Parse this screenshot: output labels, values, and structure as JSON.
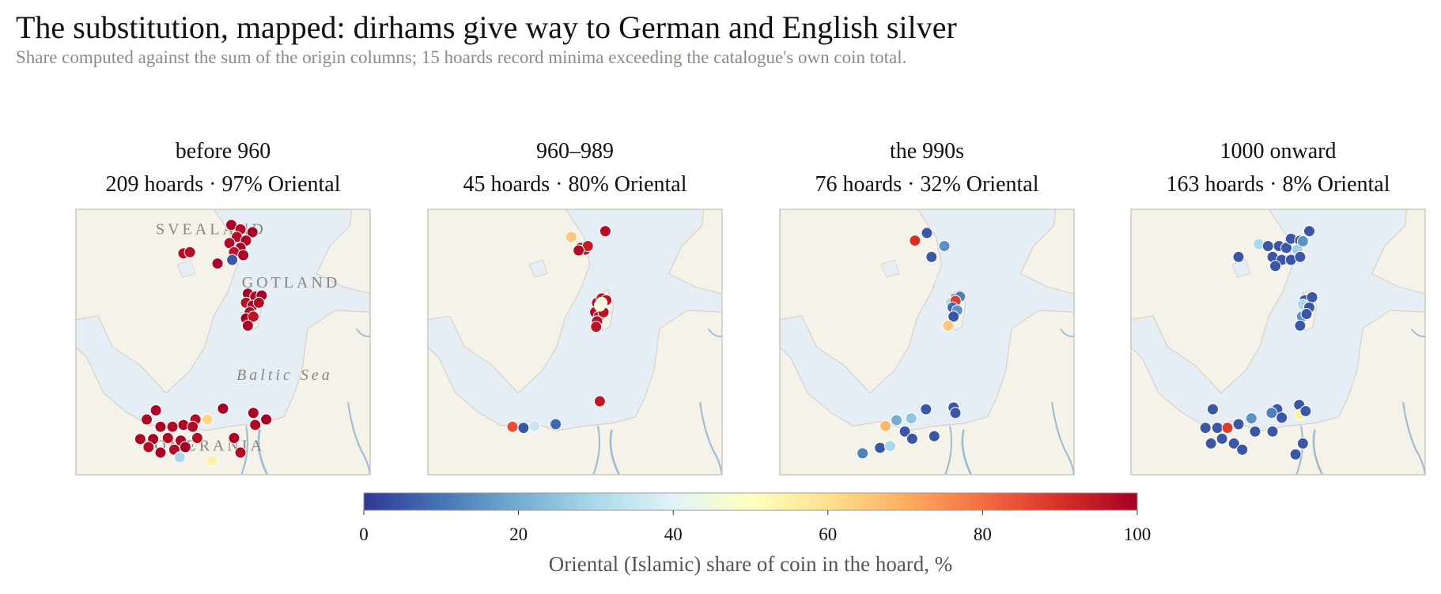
{
  "title": "The substitution, mapped: dirhams give way to German and English silver",
  "subtitle": "Share computed against the sum of the origin columns; 15 hoards record minima exceeding the catalogue's own coin total.",
  "colorbar": {
    "label": "Oriental (Islamic) share of coin in the hoard, %",
    "colormap": "RdYlBu_r",
    "clim": [
      0,
      100
    ],
    "ticks": [
      0,
      20,
      40,
      60,
      80,
      100
    ]
  },
  "chart_data": [
    {
      "type": "scatter",
      "title": "before 960",
      "subtitle": "209 hoards · 97% Oriental",
      "xlim": [
        9,
        25
      ],
      "ylim": [
        52.8,
        60.1
      ],
      "annotations": [
        "SVEALAND",
        "GOTLAND",
        "Baltic Sea",
        "POMERANIA"
      ],
      "x": [
        17.45,
        17.95,
        18.6,
        17.75,
        18.25,
        17.35,
        17.95,
        17.6,
        18.1,
        17.5,
        14.85,
        15.2,
        16.7,
        18.35,
        18.75,
        19.1,
        18.25,
        18.6,
        18.45,
        18.25,
        18.65,
        18.35,
        18.95,
        13.35,
        12.85,
        15.5,
        17.0,
        13.6,
        14.25,
        14.85,
        15.35,
        16.15,
        12.5,
        13.2,
        14.0,
        14.7,
        15.6,
        13.6,
        14.35,
        14.95,
        12.95,
        17.6,
        17.95,
        18.65,
        19.35,
        18.75,
        16.4,
        14.65
      ],
      "y": [
        59.67,
        59.55,
        59.47,
        59.34,
        59.24,
        59.17,
        59.04,
        58.92,
        58.84,
        58.71,
        58.89,
        58.92,
        58.61,
        57.78,
        57.7,
        57.73,
        57.53,
        57.45,
        57.27,
        57.1,
        57.15,
        56.9,
        57.53,
        54.57,
        54.32,
        54.32,
        54.62,
        54.12,
        54.12,
        54.17,
        54.12,
        54.32,
        53.78,
        53.78,
        53.81,
        53.74,
        53.81,
        53.41,
        53.49,
        53.56,
        53.56,
        53.81,
        53.41,
        54.5,
        54.32,
        54.17,
        53.18,
        53.28
      ],
      "values": [
        99,
        98,
        100,
        97,
        99,
        98,
        100,
        96,
        99,
        5,
        98,
        97,
        99,
        99,
        98,
        100,
        97,
        99,
        98,
        100,
        96,
        99,
        98,
        99,
        98,
        97,
        100,
        99,
        98,
        99,
        97,
        62,
        99,
        100,
        98,
        99,
        97,
        99,
        98,
        100,
        97,
        99,
        98,
        99,
        100,
        98,
        55,
        30
      ]
    },
    {
      "type": "scatter",
      "title": "960–989",
      "subtitle": "45 hoards · 80% Oriental",
      "xlim": [
        9,
        25
      ],
      "ylim": [
        52.8,
        60.1
      ],
      "x": [
        16.8,
        18.65,
        17.3,
        17.55,
        17.7,
        17.2,
        18.2,
        18.45,
        18.7,
        18.1,
        18.3,
        18.55,
        18.2,
        18.35,
        18.45,
        18.15,
        18.35,
        13.6,
        14.2,
        14.8,
        15.95
      ],
      "y": [
        59.34,
        59.5,
        59.04,
        58.99,
        59.09,
        58.97,
        57.53,
        57.65,
        57.6,
        57.27,
        57.15,
        57.27,
        57.02,
        57.45,
        57.53,
        56.87,
        54.82,
        54.12,
        54.09,
        54.14,
        54.19
      ],
      "values": [
        65,
        97,
        95,
        96,
        94,
        97,
        96,
        95,
        97,
        98,
        95,
        96,
        97,
        50,
        45,
        96,
        95,
        85,
        5,
        35,
        8
      ]
    },
    {
      "type": "scatter",
      "title": "the 990s",
      "subtitle": "76 hoards · 32% Oriental",
      "xlim": [
        9,
        25
      ],
      "ylim": [
        52.8,
        60.1
      ],
      "x": [
        16.35,
        17.0,
        17.95,
        17.25,
        18.55,
        18.8,
        18.3,
        18.55,
        18.4,
        18.65,
        18.45,
        18.15,
        16.95,
        18.45,
        18.55,
        15.35,
        16.15,
        14.75,
        15.8,
        16.2,
        17.4,
        14.45,
        15.0,
        13.5
      ],
      "y": [
        59.24,
        59.45,
        59.09,
        58.79,
        57.65,
        57.7,
        57.53,
        57.58,
        57.4,
        57.32,
        57.15,
        56.9,
        54.6,
        54.65,
        54.5,
        54.3,
        54.35,
        54.14,
        53.99,
        53.79,
        53.86,
        53.54,
        53.59,
        53.39
      ],
      "values": [
        90,
        5,
        15,
        5,
        15,
        12,
        30,
        88,
        8,
        15,
        5,
        65,
        5,
        5,
        5,
        20,
        25,
        68,
        5,
        5,
        5,
        5,
        30,
        12
      ]
    },
    {
      "type": "scatter",
      "title": "1000 onward",
      "subtitle": "163 hoards · 8% Oriental",
      "xlim": [
        9,
        25
      ],
      "ylim": [
        52.8,
        60.1
      ],
      "x": [
        14.85,
        15.95,
        16.45,
        17.05,
        17.45,
        17.7,
        18.2,
        18.7,
        18.05,
        18.35,
        16.7,
        17.2,
        16.85,
        17.7,
        18.2,
        18.45,
        18.85,
        18.35,
        18.7,
        18.3,
        18.55,
        18.2,
        13.45,
        13.05,
        13.7,
        14.25,
        14.85,
        15.55,
        16.95,
        18.15,
        17.2,
        16.65,
        18.2,
        18.5,
        13.35,
        13.95,
        14.6,
        15.05,
        15.75,
        16.7,
        18.35,
        17.95
      ],
      "y": [
        58.79,
        59.14,
        59.09,
        59.09,
        59.04,
        59.29,
        59.24,
        59.5,
        58.99,
        59.22,
        58.79,
        58.71,
        58.54,
        58.71,
        58.79,
        57.6,
        57.68,
        57.48,
        57.4,
        57.15,
        57.22,
        56.9,
        54.6,
        54.09,
        54.09,
        54.09,
        54.19,
        54.35,
        54.6,
        54.72,
        54.37,
        54.5,
        54.45,
        54.55,
        53.66,
        53.79,
        53.66,
        53.49,
        53.99,
        53.99,
        53.66,
        53.36
      ],
      "values": [
        5,
        30,
        5,
        5,
        5,
        5,
        5,
        5,
        28,
        15,
        5,
        5,
        5,
        5,
        5,
        5,
        5,
        30,
        5,
        15,
        5,
        5,
        5,
        5,
        5,
        88,
        5,
        15,
        5,
        5,
        5,
        12,
        55,
        5,
        5,
        5,
        5,
        5,
        5,
        5,
        5,
        5
      ]
    }
  ]
}
